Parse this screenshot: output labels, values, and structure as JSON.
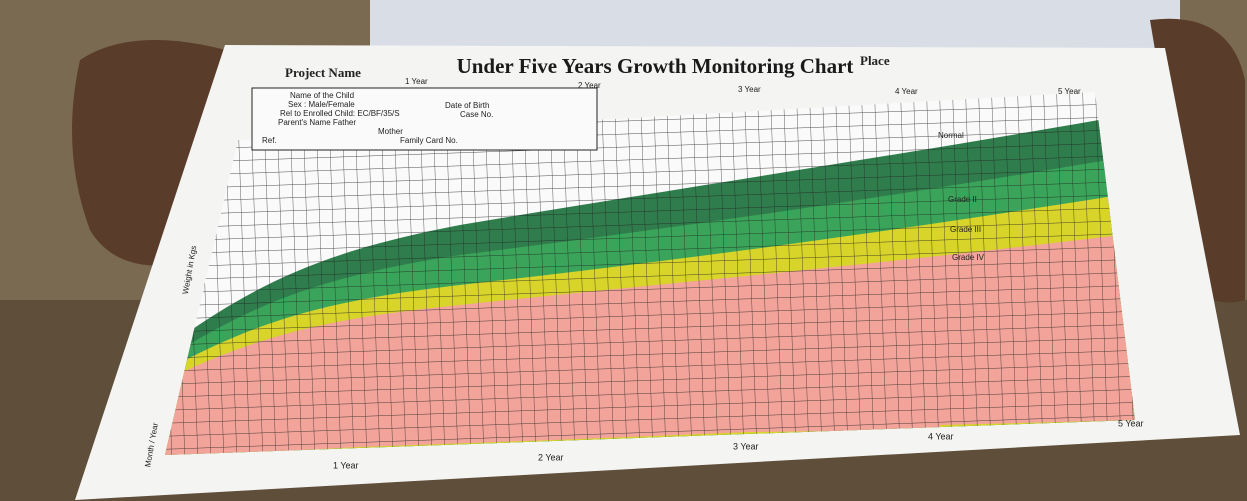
{
  "header": {
    "title": "Under Five Years Growth Monitoring Chart",
    "project_label": "Project Name",
    "place_label": "Place"
  },
  "top_axis": [
    "1 Year",
    "2 Year",
    "3 Year",
    "4 Year",
    "5 Year"
  ],
  "form": {
    "child": "Name of the Child",
    "sex": "Sex : Male/Female",
    "dob": "Date of Birth",
    "relation": "Rel to Enrolled Child: EC/BF/35/S",
    "case": "Case No.",
    "father": "Parent's Name Father",
    "mother": "Mother",
    "ref": "Ref.",
    "family_card": "Family Card No."
  },
  "grades": [
    "Normal",
    "Grade II",
    "Grade III",
    "Grade IV"
  ],
  "y_axis_label": "Weight in Kgs",
  "x_axis_label": "Month / Year",
  "bottom_axis": [
    "1 Year",
    "2 Year",
    "3 Year",
    "4 Year",
    "5 Year"
  ]
}
